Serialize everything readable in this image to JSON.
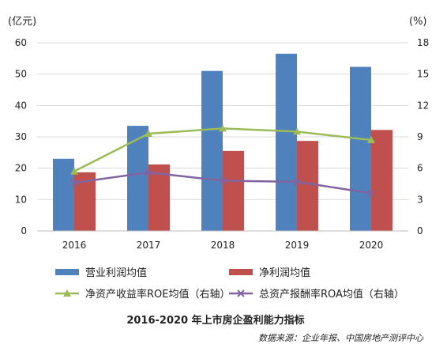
{
  "chart_data": {
    "type": "bar",
    "title": "2016-2020 年上市房企盈利能力指标",
    "source": "数据来源：企业年报、中国房地产测评中心",
    "left_axis_unit": "(亿元)",
    "right_axis_unit": "(%)",
    "categories": [
      "2016",
      "2017",
      "2018",
      "2019",
      "2020"
    ],
    "ylim_left": [
      0,
      60
    ],
    "yticks_left": [
      "0",
      "10",
      "20",
      "30",
      "40",
      "50",
      "60"
    ],
    "ylim_right": [
      0,
      18
    ],
    "yticks_right": [
      "0",
      "3",
      "6",
      "9",
      "12",
      "15",
      "18"
    ],
    "bar_series": [
      {
        "name": "营业利润均值",
        "color": "#4f81bd",
        "values": [
          23.0,
          33.5,
          51.0,
          56.5,
          52.3
        ]
      },
      {
        "name": "净利润均值",
        "color": "#c0504d",
        "values": [
          18.7,
          21.2,
          25.5,
          28.7,
          32.2
        ]
      }
    ],
    "line_series": [
      {
        "name": "净资产收益率ROE均值（右轴）",
        "color": "#9bbb59",
        "marker": "triangle",
        "values": [
          5.7,
          9.3,
          9.8,
          9.5,
          8.7
        ]
      },
      {
        "name": "总资产报酬率ROA均值（右轴）",
        "color": "#8064a2",
        "marker": "x",
        "values": [
          4.6,
          5.6,
          4.8,
          4.7,
          3.6
        ]
      }
    ]
  }
}
